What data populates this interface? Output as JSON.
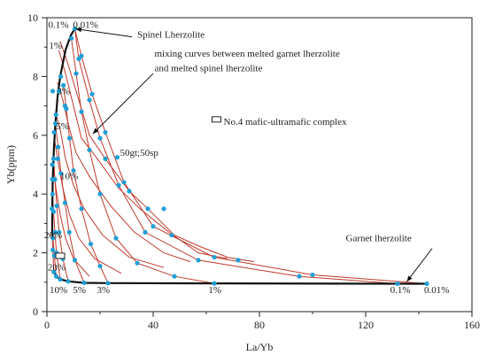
{
  "chart_data": {
    "type": "line",
    "xlabel": "La/Yb",
    "ylabel": "Yb(ppm)",
    "xlim": [
      0,
      160
    ],
    "ylim": [
      0,
      10
    ],
    "xticks": [
      0,
      40,
      80,
      120,
      160
    ],
    "yticks": [
      0,
      2,
      4,
      6,
      8,
      10
    ],
    "grid": false,
    "colors": {
      "melting_curve": "#111111",
      "mixing_curve": "#c0392b",
      "point": "#1f9fd6"
    },
    "spinel_melting_curve": [
      [
        10.5,
        9.62
      ],
      [
        9.0,
        9.4
      ],
      [
        7.0,
        8.9
      ],
      [
        5.0,
        8.0
      ],
      [
        4.0,
        7.3
      ],
      [
        3.2,
        6.4
      ],
      [
        2.6,
        5.5
      ],
      [
        2.2,
        4.5
      ],
      [
        2.0,
        3.5
      ],
      [
        2.0,
        2.55
      ]
    ],
    "garnet_melting_curve": [
      [
        143,
        0.95
      ],
      [
        132,
        0.95
      ],
      [
        63,
        0.96
      ],
      [
        23,
        0.97
      ],
      [
        14,
        0.98
      ],
      [
        8,
        1.03
      ],
      [
        5,
        1.1
      ],
      [
        3.5,
        1.2
      ],
      [
        2.6,
        1.35
      ]
    ],
    "mixing_curves": [
      [
        [
          10.5,
          9.62
        ],
        [
          13,
          8.7
        ],
        [
          17,
          7.4
        ],
        [
          22,
          6.1
        ],
        [
          29,
          4.4
        ],
        [
          40,
          2.9
        ],
        [
          63,
          1.85
        ],
        [
          100,
          1.25
        ],
        [
          143,
          0.95
        ]
      ],
      [
        [
          10.5,
          9.62
        ],
        [
          12,
          8.6
        ],
        [
          16,
          7.2
        ],
        [
          20,
          5.9
        ],
        [
          27,
          4.3
        ],
        [
          37,
          2.7
        ],
        [
          57,
          1.75
        ],
        [
          95,
          1.2
        ],
        [
          132,
          0.95
        ]
      ],
      [
        [
          9.2,
          9.3
        ],
        [
          11,
          8.1
        ],
        [
          13,
          6.8
        ],
        [
          16,
          5.5
        ],
        [
          20,
          4.0
        ],
        [
          26,
          2.5
        ],
        [
          34,
          1.65
        ],
        [
          48,
          1.2
        ],
        [
          63,
          0.96
        ]
      ],
      [
        [
          6.2,
          7.7
        ],
        [
          7.3,
          6.9
        ],
        [
          8.5,
          5.9
        ],
        [
          10,
          4.8
        ],
        [
          13,
          3.5
        ],
        [
          16.5,
          2.3
        ],
        [
          20,
          1.55
        ],
        [
          23,
          0.97
        ]
      ],
      [
        [
          3.2,
          6.4
        ],
        [
          4.2,
          5.6
        ],
        [
          5.3,
          4.7
        ],
        [
          6.8,
          3.7
        ],
        [
          8.4,
          2.7
        ],
        [
          10.5,
          1.75
        ],
        [
          14,
          0.98
        ]
      ],
      [
        [
          2.5,
          5.2
        ],
        [
          3.0,
          4.5
        ],
        [
          3.7,
          3.6
        ],
        [
          4.6,
          2.7
        ],
        [
          6.0,
          1.8
        ],
        [
          8,
          1.03
        ]
      ],
      [
        [
          2.1,
          4.0
        ],
        [
          2.5,
          3.4
        ],
        [
          3.0,
          2.7
        ],
        [
          3.6,
          2.0
        ],
        [
          5,
          1.1
        ]
      ],
      [
        [
          2.0,
          3.1
        ],
        [
          2.3,
          2.5
        ],
        [
          2.8,
          1.9
        ],
        [
          3.5,
          1.2
        ]
      ],
      [
        [
          2.0,
          2.55
        ],
        [
          2.2,
          2.1
        ],
        [
          2.6,
          1.35
        ]
      ],
      [
        [
          5,
          9.2
        ],
        [
          8,
          8.4
        ],
        [
          12,
          7.2
        ],
        [
          16,
          6.0
        ],
        [
          22,
          5.2
        ],
        [
          31,
          4.1
        ],
        [
          38,
          3.5
        ],
        [
          48,
          2.6
        ],
        [
          58,
          2.2
        ],
        [
          68,
          1.85
        ],
        [
          78,
          1.7
        ]
      ],
      [
        [
          4.5,
          8.9
        ],
        [
          7,
          8.1
        ],
        [
          10,
          7.0
        ],
        [
          13,
          5.9
        ],
        [
          19,
          5.2
        ],
        [
          27,
          4.2
        ],
        [
          35,
          3.5
        ],
        [
          46,
          2.7
        ],
        [
          57,
          2.0
        ],
        [
          68,
          1.8
        ]
      ],
      [
        [
          4.0,
          7.8
        ],
        [
          6,
          7.2
        ],
        [
          8,
          6.4
        ],
        [
          11,
          5.4
        ],
        [
          16,
          4.6
        ],
        [
          24,
          3.6
        ],
        [
          33,
          2.7
        ],
        [
          44,
          2.0
        ],
        [
          54,
          1.7
        ]
      ],
      [
        [
          3.2,
          6.8
        ],
        [
          5,
          6.2
        ],
        [
          7,
          5.2
        ],
        [
          10,
          4.3
        ],
        [
          14,
          3.5
        ],
        [
          21,
          2.6
        ],
        [
          31,
          1.85
        ],
        [
          44,
          1.5
        ]
      ],
      [
        [
          2.8,
          5.9
        ],
        [
          4,
          5.2
        ],
        [
          6,
          4.2
        ],
        [
          8.5,
          3.3
        ],
        [
          12,
          2.5
        ],
        [
          18,
          1.8
        ],
        [
          28,
          1.3
        ]
      ],
      [
        [
          2.4,
          5.0
        ],
        [
          3.4,
          4.2
        ],
        [
          5,
          3.3
        ],
        [
          7,
          2.5
        ],
        [
          10,
          1.8
        ],
        [
          16,
          1.2
        ]
      ]
    ],
    "points": [
      [
        10.5,
        9.62
      ],
      [
        9.2,
        9.3
      ],
      [
        13,
        8.7
      ],
      [
        12,
        8.6
      ],
      [
        11,
        8.1
      ],
      [
        5.2,
        8.0
      ],
      [
        4.5,
        7.5
      ],
      [
        17,
        7.4
      ],
      [
        16,
        7.2
      ],
      [
        13,
        6.8
      ],
      [
        6.8,
        7.0
      ],
      [
        3.2,
        6.4
      ],
      [
        6.2,
        7.7
      ],
      [
        7.3,
        6.9
      ],
      [
        22,
        6.1
      ],
      [
        20,
        5.9
      ],
      [
        16,
        5.5
      ],
      [
        8.5,
        5.9
      ],
      [
        4.2,
        5.6
      ],
      [
        2.5,
        5.2
      ],
      [
        3.0,
        4.5
      ],
      [
        5.3,
        4.7
      ],
      [
        10,
        4.8
      ],
      [
        20,
        4.0
      ],
      [
        29,
        4.4
      ],
      [
        27,
        4.3
      ],
      [
        13,
        3.5
      ],
      [
        6.8,
        3.7
      ],
      [
        3.7,
        3.6
      ],
      [
        2.1,
        4.0
      ],
      [
        2.5,
        3.4
      ],
      [
        3.0,
        2.7
      ],
      [
        4.6,
        2.7
      ],
      [
        8.4,
        2.7
      ],
      [
        16.5,
        2.3
      ],
      [
        26,
        2.5
      ],
      [
        37,
        2.7
      ],
      [
        40,
        2.9
      ],
      [
        47,
        2.6
      ],
      [
        57,
        1.75
      ],
      [
        63,
        1.85
      ],
      [
        72,
        1.75
      ],
      [
        34,
        1.65
      ],
      [
        20,
        1.55
      ],
      [
        10.5,
        1.75
      ],
      [
        6.0,
        1.8
      ],
      [
        3.6,
        2.0
      ],
      [
        2.8,
        1.9
      ],
      [
        2.3,
        2.5
      ],
      [
        2.2,
        2.1
      ],
      [
        5,
        1.1
      ],
      [
        8,
        1.03
      ],
      [
        14,
        0.98
      ],
      [
        23,
        0.97
      ],
      [
        63,
        0.96
      ],
      [
        132,
        0.95
      ],
      [
        143,
        0.95
      ],
      [
        2.6,
        1.35
      ],
      [
        3.5,
        1.2
      ],
      [
        48,
        1.2
      ],
      [
        95,
        1.2
      ],
      [
        100,
        1.25
      ],
      [
        22,
        5.2
      ],
      [
        26.5,
        5.25
      ],
      [
        31,
        4.1
      ],
      [
        38,
        3.5
      ],
      [
        44,
        3.5
      ],
      [
        2.0,
        4.5
      ],
      [
        2.0,
        5.0
      ],
      [
        1.9,
        3.5
      ],
      [
        2.2,
        7.5
      ],
      [
        2.7,
        6.1
      ],
      [
        3.4,
        6.7
      ],
      [
        4.1,
        5.2
      ],
      [
        4.2,
        5.6
      ]
    ],
    "legend_marker": {
      "x": 5,
      "y": 1.9
    },
    "annotations": [
      {
        "text": "0.1%",
        "x": 0.5,
        "y": 9.65
      },
      {
        "text": "0.01%",
        "x": 9.8,
        "y": 9.65
      },
      {
        "text": "1%",
        "x": 0.8,
        "y": 8.95
      },
      {
        "text": "3%",
        "x": 3.8,
        "y": 7.4
      },
      {
        "text": "5%",
        "x": 3.4,
        "y": 6.2
      },
      {
        "text": "10%",
        "x": 5.0,
        "y": 4.5
      },
      {
        "text": "20%",
        "x": -1,
        "y": 2.5
      },
      {
        "text": "20%",
        "x": 0.3,
        "y": 1.4
      },
      {
        "text": "10%",
        "x": 1.0,
        "y": 0.63
      },
      {
        "text": "5%",
        "x": 9.8,
        "y": 0.63
      },
      {
        "text": "3%",
        "x": 18.8,
        "y": 0.63
      },
      {
        "text": "1%",
        "x": 60.8,
        "y": 0.63
      },
      {
        "text": "0.1%",
        "x": 129.2,
        "y": 0.63
      },
      {
        "text": "0.01%",
        "x": 142,
        "y": 0.63
      },
      {
        "text": "Spinel Lherzolite",
        "x": 34,
        "y": 9.32
      },
      {
        "text": "mixing curves between melted garnet lherzolite",
        "x": 40.5,
        "y": 8.68
      },
      {
        "text": "and melted spinel lherzolite",
        "x": 40.5,
        "y": 8.18
      },
      {
        "text": "No.4 mafic-ultramafic complex",
        "x": 66.5,
        "y": 6.36
      },
      {
        "text": "50gt;50sp",
        "x": 27.5,
        "y": 5.3
      },
      {
        "text": "Garnet lherzolite",
        "x": 112.5,
        "y": 2.4
      }
    ]
  }
}
